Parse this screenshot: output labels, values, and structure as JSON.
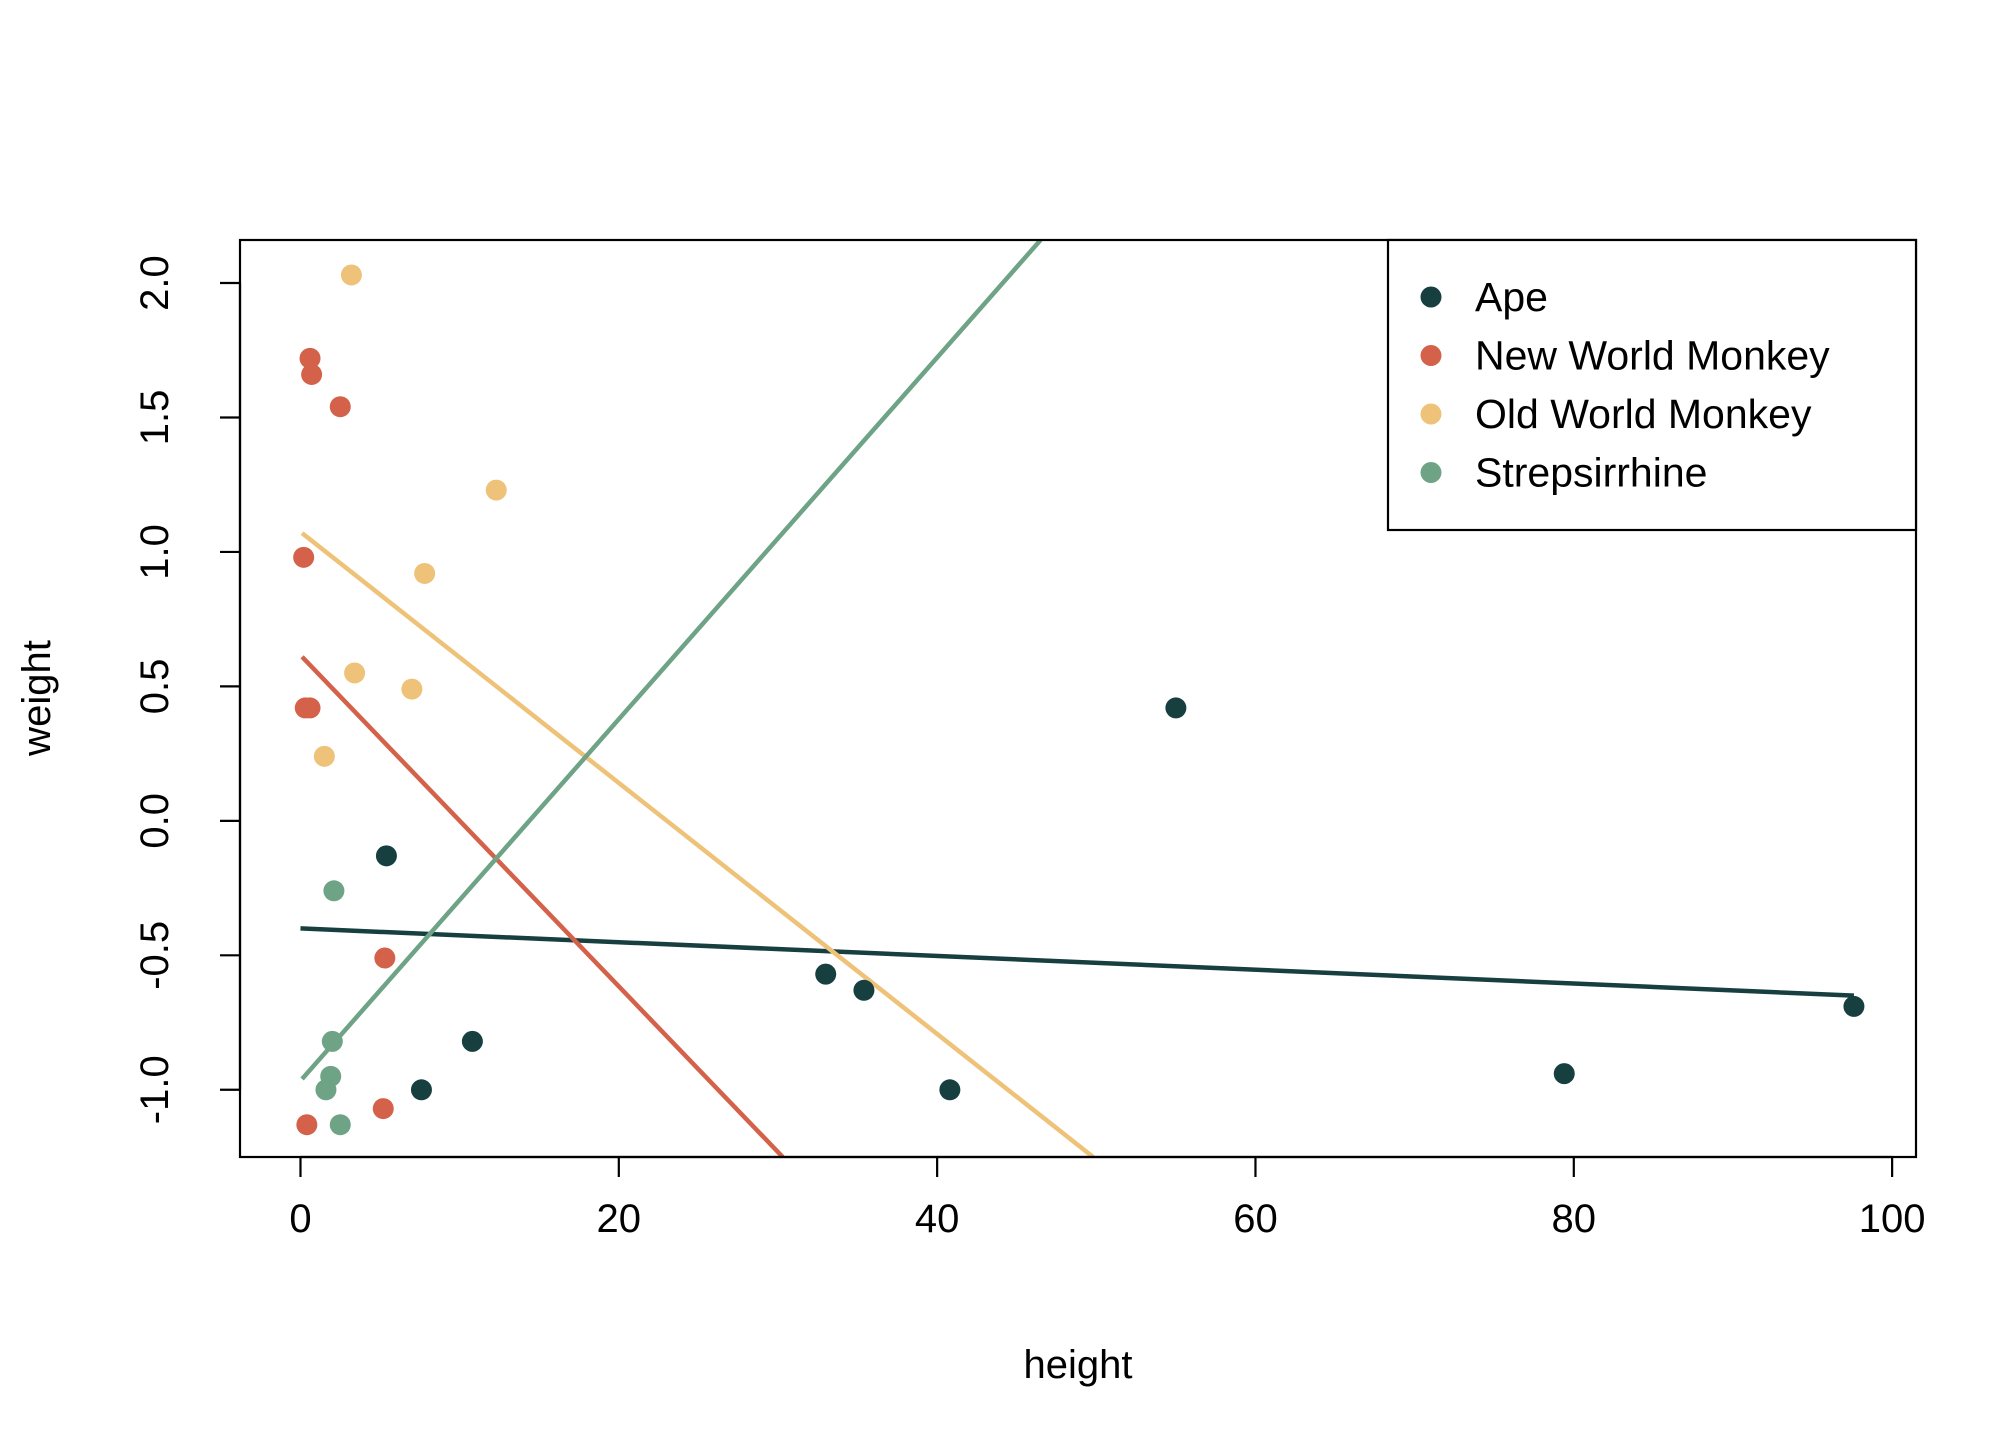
{
  "chart_data": {
    "type": "scatter",
    "title": "",
    "xlabel": "height",
    "ylabel": "weight",
    "xlim": [
      -3.8,
      101.5
    ],
    "ylim": [
      -1.25,
      2.16
    ],
    "x_ticks": [
      0,
      20,
      40,
      60,
      80,
      100
    ],
    "y_ticks": [
      -1.0,
      -0.5,
      0.0,
      0.5,
      1.0,
      1.5,
      2.0
    ],
    "x_tick_labels": [
      "0",
      "20",
      "40",
      "60",
      "80",
      "100"
    ],
    "y_tick_labels": [
      "-1.0",
      "-0.5",
      "0.0",
      "0.5",
      "1.0",
      "1.5",
      "2.0"
    ],
    "grid": false,
    "legend_position": "top-right",
    "series": [
      {
        "name": "Ape",
        "color": "#173f3f",
        "points": [
          [
            5.4,
            -0.13
          ],
          [
            7.6,
            -1.0
          ],
          [
            10.8,
            -0.82
          ],
          [
            33.0,
            -0.57
          ],
          [
            35.4,
            -0.63
          ],
          [
            40.8,
            -1.0
          ],
          [
            55.0,
            0.42
          ],
          [
            79.4,
            -0.94
          ],
          [
            97.6,
            -0.69
          ]
        ],
        "fit": {
          "x0": 0,
          "y0": -0.4,
          "x1": 97.6,
          "y1": -0.65
        }
      },
      {
        "name": "New World Monkey",
        "color": "#d4624a",
        "points": [
          [
            0.2,
            0.98
          ],
          [
            0.3,
            0.42
          ],
          [
            0.6,
            0.42
          ],
          [
            0.6,
            1.72
          ],
          [
            0.7,
            1.66
          ],
          [
            2.5,
            1.54
          ],
          [
            5.3,
            -0.51
          ],
          [
            5.2,
            -1.07
          ],
          [
            0.4,
            -1.13
          ]
        ],
        "fit": {
          "x0": 0.1,
          "y0": 0.61,
          "x1": 30.3,
          "y1": -1.25
        }
      },
      {
        "name": "Old World Monkey",
        "color": "#eec279",
        "points": [
          [
            1.5,
            0.24
          ],
          [
            3.2,
            2.03
          ],
          [
            3.4,
            0.55
          ],
          [
            7.0,
            0.49
          ],
          [
            7.8,
            0.92
          ],
          [
            12.3,
            1.23
          ]
        ],
        "fit": {
          "x0": 0.1,
          "y0": 1.07,
          "x1": 49.8,
          "y1": -1.25
        }
      },
      {
        "name": "Strepsirrhine",
        "color": "#6fa386",
        "points": [
          [
            2.1,
            -0.26
          ],
          [
            2.0,
            -0.82
          ],
          [
            1.9,
            -0.95
          ],
          [
            1.6,
            -1.0
          ],
          [
            2.5,
            -1.13
          ]
        ],
        "fit": {
          "x0": 0.1,
          "y0": -0.96,
          "x1": 46.5,
          "y1": 2.16
        }
      }
    ]
  }
}
